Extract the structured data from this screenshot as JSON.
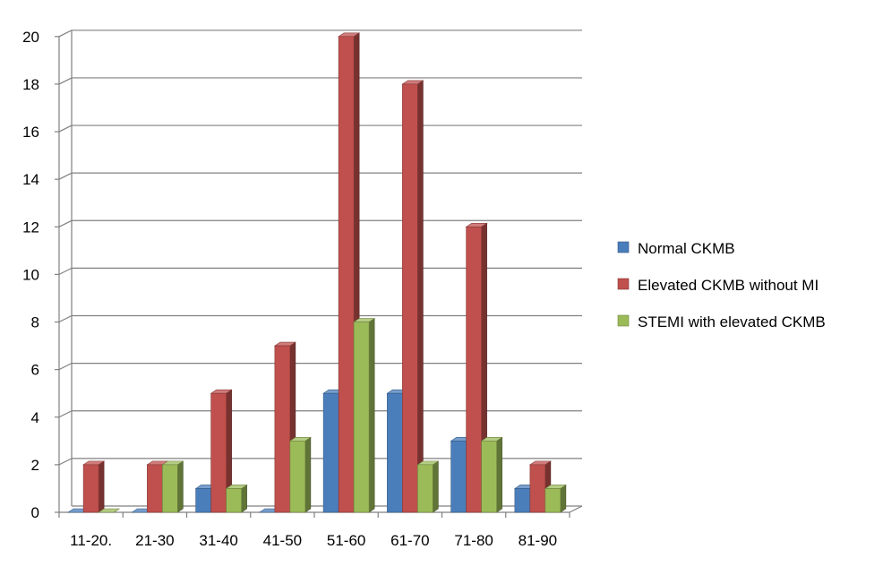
{
  "chart_data": {
    "type": "bar",
    "style": "3d-clustered-column",
    "categories": [
      "11-20.",
      "21-30",
      "31-40",
      "41-50",
      "51-60",
      "61-70",
      "71-80",
      "81-90"
    ],
    "series": [
      {
        "name": "Normal CKMB",
        "values": [
          0,
          0,
          1,
          0,
          5,
          5,
          3,
          1
        ],
        "color": "#4a7ebb"
      },
      {
        "name": "Elevated CKMB without MI",
        "values": [
          2,
          2,
          5,
          7,
          20,
          18,
          12,
          2
        ],
        "color": "#c0504d"
      },
      {
        "name": "STEMI with elevated CKMB",
        "values": [
          0,
          2,
          1,
          3,
          8,
          2,
          3,
          1
        ],
        "color": "#9bbb59"
      }
    ],
    "y_ticks": [
      "0",
      "2",
      "4",
      "6",
      "8",
      "10",
      "12",
      "14",
      "16",
      "18",
      "20"
    ],
    "ylim": [
      0,
      20
    ],
    "grid": true,
    "legend_position": "right"
  }
}
